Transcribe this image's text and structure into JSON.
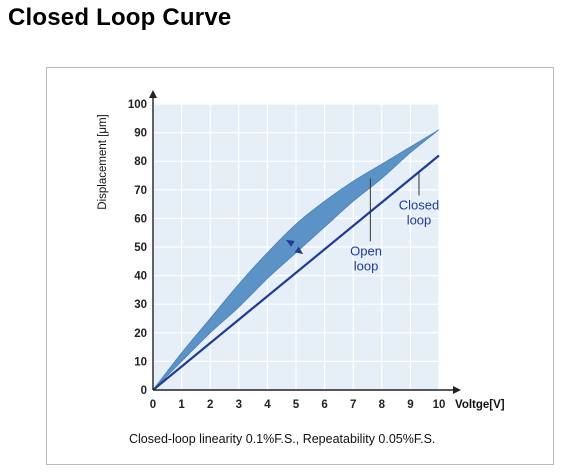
{
  "page": {
    "heading": "Closed Loop Curve"
  },
  "chart_data": {
    "type": "line",
    "title": "",
    "xlabel": "Voltge[V]",
    "ylabel": "Displacement [μm]",
    "xlim": [
      0,
      10
    ],
    "ylim": [
      0,
      100
    ],
    "x_ticks": [
      "0",
      "1",
      "2",
      "3",
      "4",
      "5",
      "6",
      "7",
      "8",
      "9",
      "10"
    ],
    "y_ticks": [
      "0",
      "10",
      "20",
      "30",
      "40",
      "50",
      "60",
      "70",
      "80",
      "90",
      "100"
    ],
    "grid": true,
    "series": [
      {
        "name": "Open loop",
        "label_lines": [
          "Open",
          "loop"
        ],
        "style": "hysteresis-band",
        "color": "#5b93c7",
        "ascending": {
          "x": [
            0,
            1,
            2,
            3,
            4,
            5,
            6,
            7,
            8,
            9,
            10
          ],
          "y": [
            0,
            13,
            25,
            37,
            48,
            58,
            66,
            73,
            79,
            85,
            91
          ]
        },
        "descending": {
          "x": [
            0,
            1,
            2,
            3,
            4,
            5,
            6,
            7,
            8,
            9,
            10
          ],
          "y": [
            0,
            10,
            20,
            29,
            39,
            48,
            57,
            66,
            74,
            83,
            91
          ]
        }
      },
      {
        "name": "Closed loop",
        "label_lines": [
          "Closed",
          "loop"
        ],
        "style": "line",
        "color": "#1f3b93",
        "x": [
          0,
          10
        ],
        "y": [
          0,
          82
        ]
      }
    ],
    "caption": "Closed-loop linearity 0.1%F.S., Repeatability 0.05%F.S."
  }
}
